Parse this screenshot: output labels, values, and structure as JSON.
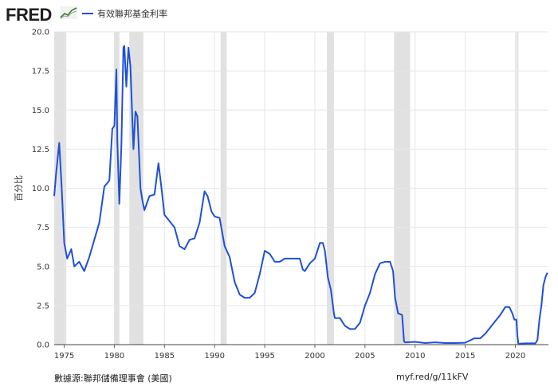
{
  "header": {
    "logo_text": "FRED",
    "legend_label": "有效聯邦基金利率"
  },
  "colors": {
    "series": "#1f50d8",
    "recession": "#e1e1e1",
    "grid": "#e6e6e6",
    "background": "#ffffff"
  },
  "footer": {
    "source": "數據源:聯邦儲備理事會 (美國)",
    "url": "myf.red/g/11kFV"
  },
  "chart_data": {
    "type": "line",
    "ylabel": "百分比",
    "xlim": [
      1974,
      2023.3
    ],
    "ylim": [
      0,
      20
    ],
    "yticks": [
      "0.0",
      "2.5",
      "5.0",
      "7.5",
      "10.0",
      "12.5",
      "15.0",
      "17.5",
      "20.0"
    ],
    "xticks": [
      "1975",
      "1980",
      "1985",
      "1990",
      "1995",
      "2000",
      "2005",
      "2010",
      "2015",
      "2020"
    ],
    "grid": true,
    "legend_position": "top-left",
    "recessions": [
      [
        1974.0,
        1975.2
      ],
      [
        1980.0,
        1980.5
      ],
      [
        1981.5,
        1982.9
      ],
      [
        1990.6,
        1991.2
      ],
      [
        2001.2,
        2001.9
      ],
      [
        2007.9,
        2009.5
      ],
      [
        2020.1,
        2020.3
      ]
    ],
    "series": [
      {
        "name": "有效聯邦基金利率",
        "x": [
          1974.0,
          1974.2,
          1974.5,
          1974.75,
          1975.0,
          1975.3,
          1975.7,
          1976.0,
          1976.5,
          1977.0,
          1977.5,
          1978.0,
          1978.5,
          1979.0,
          1979.5,
          1979.8,
          1980.0,
          1980.2,
          1980.3,
          1980.5,
          1980.7,
          1980.9,
          1981.0,
          1981.2,
          1981.4,
          1981.6,
          1981.9,
          1982.1,
          1982.3,
          1982.6,
          1982.8,
          1983.0,
          1983.5,
          1984.0,
          1984.4,
          1984.7,
          1985.0,
          1985.5,
          1986.0,
          1986.5,
          1987.0,
          1987.5,
          1988.0,
          1988.5,
          1989.0,
          1989.3,
          1989.7,
          1990.0,
          1990.5,
          1991.0,
          1991.5,
          1992.0,
          1992.5,
          1993.0,
          1993.5,
          1994.0,
          1994.5,
          1995.0,
          1995.5,
          1996.0,
          1996.5,
          1997.0,
          1997.5,
          1998.0,
          1998.5,
          1998.8,
          1999.0,
          1999.5,
          2000.0,
          2000.5,
          2000.8,
          2001.0,
          2001.3,
          2001.6,
          2001.9,
          2002.0,
          2002.5,
          2003.0,
          2003.5,
          2004.0,
          2004.5,
          2005.0,
          2005.5,
          2006.0,
          2006.5,
          2007.0,
          2007.5,
          2007.8,
          2008.0,
          2008.3,
          2008.7,
          2008.9,
          2009.0,
          2010.0,
          2011.0,
          2012.0,
          2013.0,
          2014.0,
          2015.0,
          2015.9,
          2016.5,
          2017.0,
          2017.5,
          2018.0,
          2018.5,
          2019.0,
          2019.4,
          2019.7,
          2019.9,
          2020.1,
          2020.2,
          2020.3,
          2021.0,
          2022.0,
          2022.2,
          2022.4,
          2022.6,
          2022.8,
          2023.0,
          2023.2
        ],
        "values": [
          9.5,
          11.0,
          12.9,
          10.0,
          6.5,
          5.5,
          6.1,
          5.0,
          5.3,
          4.7,
          5.6,
          6.7,
          7.8,
          10.1,
          10.5,
          13.8,
          14.0,
          17.6,
          13.0,
          9.0,
          12.8,
          19.0,
          19.1,
          16.5,
          19.0,
          17.8,
          12.5,
          14.9,
          14.6,
          10.0,
          9.2,
          8.6,
          9.5,
          9.6,
          11.6,
          10.0,
          8.3,
          7.9,
          7.5,
          6.3,
          6.1,
          6.7,
          6.8,
          7.8,
          9.8,
          9.5,
          8.5,
          8.2,
          8.1,
          6.3,
          5.6,
          4.0,
          3.2,
          3.0,
          3.0,
          3.3,
          4.5,
          6.0,
          5.8,
          5.3,
          5.3,
          5.5,
          5.5,
          5.5,
          5.5,
          4.8,
          4.7,
          5.2,
          5.5,
          6.5,
          6.5,
          6.0,
          4.3,
          3.5,
          2.0,
          1.7,
          1.7,
          1.2,
          1.0,
          1.0,
          1.4,
          2.5,
          3.3,
          4.5,
          5.2,
          5.3,
          5.3,
          4.7,
          3.0,
          2.0,
          1.9,
          0.2,
          0.15,
          0.18,
          0.1,
          0.15,
          0.1,
          0.1,
          0.12,
          0.4,
          0.4,
          0.7,
          1.1,
          1.5,
          1.9,
          2.4,
          2.4,
          2.0,
          1.6,
          1.6,
          0.6,
          0.05,
          0.08,
          0.08,
          0.3,
          1.6,
          2.5,
          3.8,
          4.3,
          4.6
        ]
      }
    ]
  }
}
